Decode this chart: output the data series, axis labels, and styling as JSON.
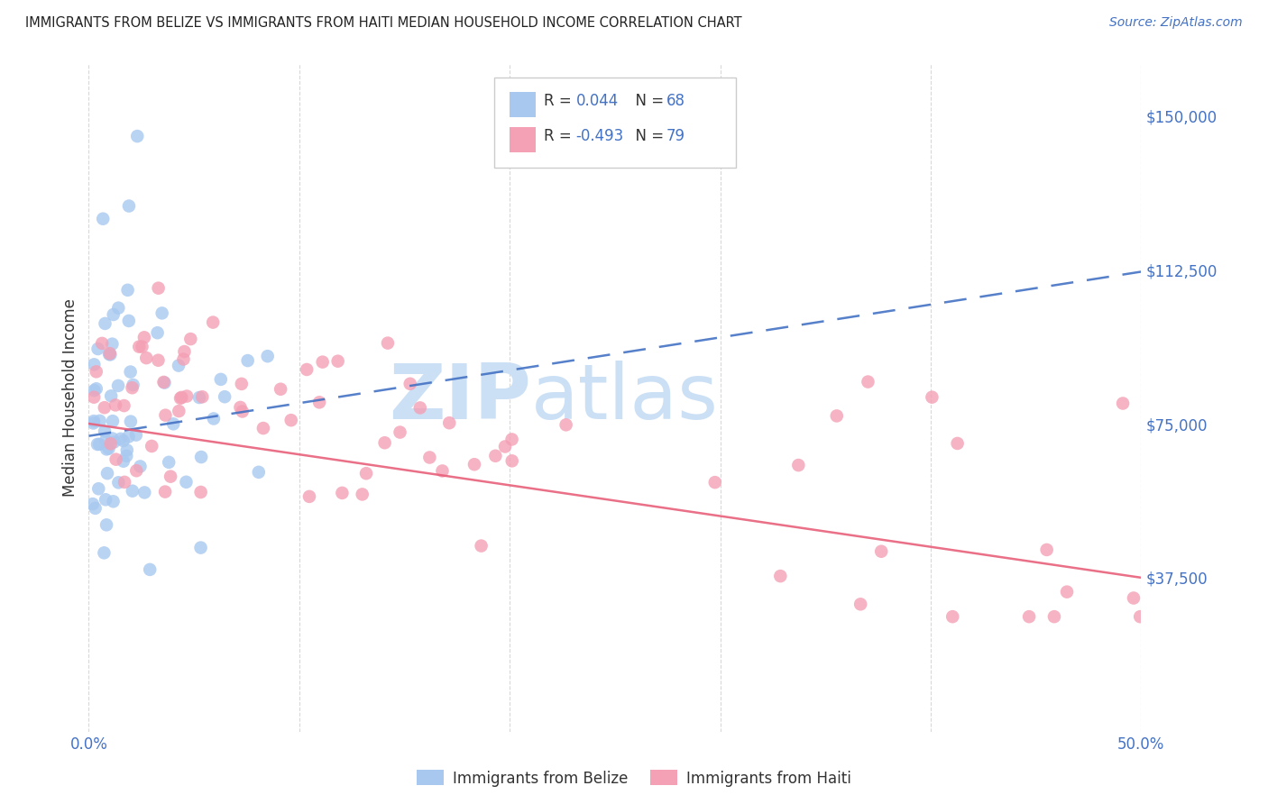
{
  "title": "IMMIGRANTS FROM BELIZE VS IMMIGRANTS FROM HAITI MEDIAN HOUSEHOLD INCOME CORRELATION CHART",
  "source_text": "Source: ZipAtlas.com",
  "ylabel": "Median Household Income",
  "xlim": [
    0.0,
    0.5
  ],
  "ylim": [
    0,
    162500
  ],
  "ytick_vals": [
    0,
    37500,
    75000,
    112500,
    150000
  ],
  "ytick_labels": [
    "",
    "$37,500",
    "$75,000",
    "$112,500",
    "$150,000"
  ],
  "xtick_vals": [
    0.0,
    0.1,
    0.2,
    0.3,
    0.4,
    0.5
  ],
  "xtick_labels": [
    "0.0%",
    "",
    "",
    "",
    "",
    "50.0%"
  ],
  "belize_R": 0.044,
  "belize_N": 68,
  "haiti_R": -0.493,
  "haiti_N": 79,
  "belize_color": "#a8c8f0",
  "haiti_color": "#f4a0b5",
  "belize_line_color": "#4472c4",
  "haiti_line_color": "#e8607a",
  "watermark_zip": "ZIP",
  "watermark_atlas": "atlas",
  "watermark_color": "#cce0f5",
  "legend_belize": "Immigrants from Belize",
  "legend_haiti": "Immigrants from Haiti",
  "belize_line_x0": 0.0,
  "belize_line_y0": 72000,
  "belize_line_x1": 0.5,
  "belize_line_y1": 112000,
  "haiti_line_x0": 0.0,
  "haiti_line_y0": 75000,
  "haiti_line_x1": 0.5,
  "haiti_line_y1": 37500
}
